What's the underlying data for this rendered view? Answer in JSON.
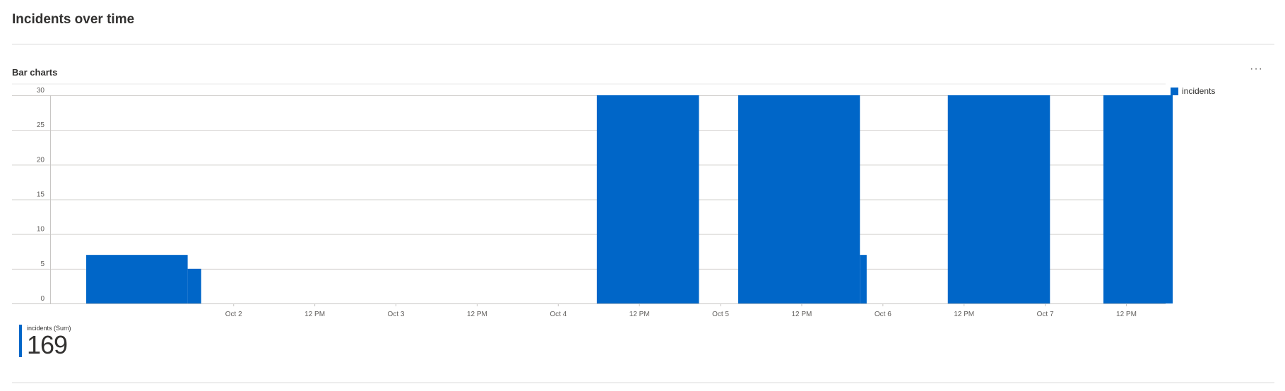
{
  "page": {
    "title": "Incidents over time"
  },
  "tile": {
    "title": "Bar charts",
    "more_label": "···"
  },
  "legend": {
    "label": "incidents",
    "color": "#0066c8"
  },
  "summary": {
    "label": "incidents (Sum)",
    "value": "169"
  },
  "chart_data": {
    "type": "bar",
    "title": "Bar charts",
    "xlabel": "",
    "ylabel": "",
    "ylim": [
      0,
      30
    ],
    "yticks": [
      0,
      5,
      10,
      15,
      20,
      25,
      30
    ],
    "grid": true,
    "legend_position": "top-right",
    "x_unit": "hours from Oct 1 00:00 (axis shows dates)",
    "xlim": [
      -3.13,
      161.8
    ],
    "x_tick_labels": [
      {
        "label": "Oct 2",
        "hours": 24
      },
      {
        "label": "12 PM",
        "hours": 36
      },
      {
        "label": "Oct 3",
        "hours": 48
      },
      {
        "label": "12 PM",
        "hours": 60
      },
      {
        "label": "Oct 4",
        "hours": 72
      },
      {
        "label": "12 PM",
        "hours": 84
      },
      {
        "label": "Oct 5",
        "hours": 96
      },
      {
        "label": "12 PM",
        "hours": 108
      },
      {
        "label": "Oct 6",
        "hours": 120
      },
      {
        "label": "12 PM",
        "hours": 132
      },
      {
        "label": "Oct 7",
        "hours": 144
      },
      {
        "label": "12 PM",
        "hours": 156
      }
    ],
    "series": [
      {
        "name": "incidents",
        "color": "#0066c8",
        "bars": [
          {
            "start": 2.2,
            "end": 17.2,
            "value": 7
          },
          {
            "start": 17.2,
            "end": 19.2,
            "value": 5
          },
          {
            "start": 77.7,
            "end": 92.8,
            "value": 30
          },
          {
            "start": 98.6,
            "end": 116.6,
            "value": 30
          },
          {
            "start": 116.6,
            "end": 117.6,
            "value": 7
          },
          {
            "start": 129.6,
            "end": 144.7,
            "value": 30
          },
          {
            "start": 152.6,
            "end": 167.6,
            "value": 30
          }
        ]
      }
    ]
  }
}
